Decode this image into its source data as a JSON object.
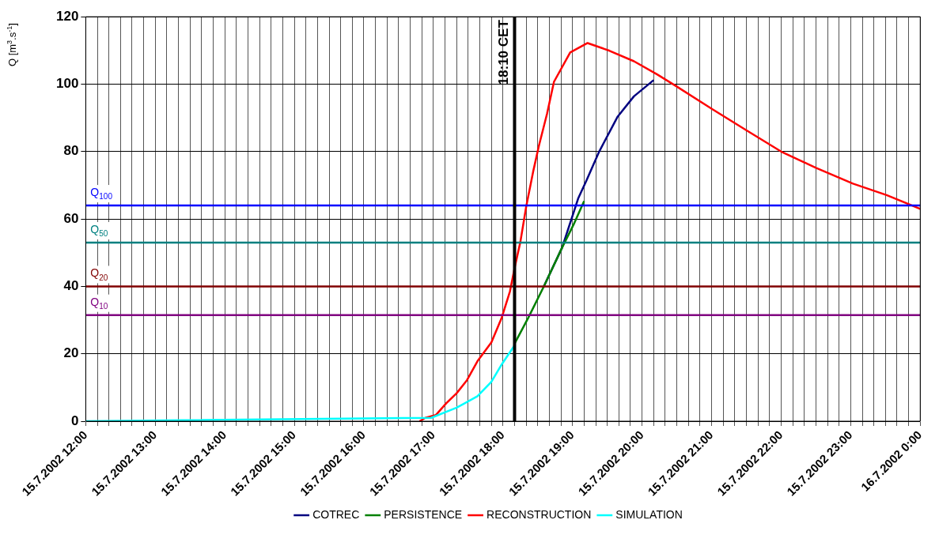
{
  "chart_data": {
    "type": "line",
    "ylabel": "Q [m$^{3}$.s$^{-1}$]",
    "xlim": [
      "2002-07-15T12:00",
      "2002-07-16T00:00"
    ],
    "xticks": [
      {
        "value": "2002-07-15T12:00",
        "label": "15.7.2002 12:00"
      },
      {
        "value": "2002-07-15T12:10",
        "label": null
      },
      {
        "value": "2002-07-15T12:20",
        "label": null
      },
      {
        "value": "2002-07-15T12:30",
        "label": null
      },
      {
        "value": "2002-07-15T12:40",
        "label": null
      },
      {
        "value": "2002-07-15T12:50",
        "label": null
      },
      {
        "value": "2002-07-15T13:00",
        "label": "15.7.2002 13:00"
      },
      {
        "value": "2002-07-15T13:10",
        "label": null
      },
      {
        "value": "2002-07-15T13:20",
        "label": null
      },
      {
        "value": "2002-07-15T13:30",
        "label": null
      },
      {
        "value": "2002-07-15T13:40",
        "label": null
      },
      {
        "value": "2002-07-15T13:50",
        "label": null
      },
      {
        "value": "2002-07-15T14:00",
        "label": "15.7.2002 14:00"
      },
      {
        "value": "2002-07-15T14:10",
        "label": null
      },
      {
        "value": "2002-07-15T14:20",
        "label": null
      },
      {
        "value": "2002-07-15T14:30",
        "label": null
      },
      {
        "value": "2002-07-15T14:40",
        "label": null
      },
      {
        "value": "2002-07-15T14:50",
        "label": null
      },
      {
        "value": "2002-07-15T15:00",
        "label": "15.7.2002 15:00"
      },
      {
        "value": "2002-07-15T15:10",
        "label": null
      },
      {
        "value": "2002-07-15T15:20",
        "label": null
      },
      {
        "value": "2002-07-15T15:30",
        "label": null
      },
      {
        "value": "2002-07-15T15:40",
        "label": null
      },
      {
        "value": "2002-07-15T15:50",
        "label": null
      },
      {
        "value": "2002-07-15T16:00",
        "label": "15.7.2002 16:00"
      },
      {
        "value": "2002-07-15T16:10",
        "label": null
      },
      {
        "value": "2002-07-15T16:20",
        "label": null
      },
      {
        "value": "2002-07-15T16:30",
        "label": null
      },
      {
        "value": "2002-07-15T16:40",
        "label": null
      },
      {
        "value": "2002-07-15T16:50",
        "label": null
      },
      {
        "value": "2002-07-15T17:00",
        "label": "15.7.2002 17:00"
      },
      {
        "value": "2002-07-15T17:10",
        "label": null
      },
      {
        "value": "2002-07-15T17:20",
        "label": null
      },
      {
        "value": "2002-07-15T17:30",
        "label": null
      },
      {
        "value": "2002-07-15T17:40",
        "label": null
      },
      {
        "value": "2002-07-15T17:50",
        "label": null
      },
      {
        "value": "2002-07-15T18:00",
        "label": "15.7.2002 18:00"
      },
      {
        "value": "2002-07-15T18:10",
        "label": null
      },
      {
        "value": "2002-07-15T18:20",
        "label": null
      },
      {
        "value": "2002-07-15T18:30",
        "label": null
      },
      {
        "value": "2002-07-15T18:40",
        "label": null
      },
      {
        "value": "2002-07-15T18:50",
        "label": null
      },
      {
        "value": "2002-07-15T19:00",
        "label": "15.7.2002 19:00"
      },
      {
        "value": "2002-07-15T19:10",
        "label": null
      },
      {
        "value": "2002-07-15T19:20",
        "label": null
      },
      {
        "value": "2002-07-15T19:30",
        "label": null
      },
      {
        "value": "2002-07-15T19:40",
        "label": null
      },
      {
        "value": "2002-07-15T19:50",
        "label": null
      },
      {
        "value": "2002-07-15T20:00",
        "label": "15.7.2002 20:00"
      },
      {
        "value": "2002-07-15T20:10",
        "label": null
      },
      {
        "value": "2002-07-15T20:20",
        "label": null
      },
      {
        "value": "2002-07-15T20:30",
        "label": null
      },
      {
        "value": "2002-07-15T20:40",
        "label": null
      },
      {
        "value": "2002-07-15T20:50",
        "label": null
      },
      {
        "value": "2002-07-15T21:00",
        "label": "15.7.2002 21:00"
      },
      {
        "value": "2002-07-15T21:10",
        "label": null
      },
      {
        "value": "2002-07-15T21:20",
        "label": null
      },
      {
        "value": "2002-07-15T21:30",
        "label": null
      },
      {
        "value": "2002-07-15T21:40",
        "label": null
      },
      {
        "value": "2002-07-15T21:50",
        "label": null
      },
      {
        "value": "2002-07-15T22:00",
        "label": "15.7.2002 22:00"
      },
      {
        "value": "2002-07-15T22:10",
        "label": null
      },
      {
        "value": "2002-07-15T22:20",
        "label": null
      },
      {
        "value": "2002-07-15T22:30",
        "label": null
      },
      {
        "value": "2002-07-15T22:40",
        "label": null
      },
      {
        "value": "2002-07-15T22:50",
        "label": null
      },
      {
        "value": "2002-07-15T23:00",
        "label": "15.7.2002 23:00"
      },
      {
        "value": "2002-07-15T23:10",
        "label": null
      },
      {
        "value": "2002-07-15T23:20",
        "label": null
      },
      {
        "value": "2002-07-15T23:30",
        "label": null
      },
      {
        "value": "2002-07-15T23:40",
        "label": null
      },
      {
        "value": "2002-07-15T23:50",
        "label": null
      },
      {
        "value": "2002-07-16T00:00",
        "label": "16.7.2002 0:00"
      }
    ],
    "ylim": [
      0,
      120
    ],
    "yticks": [
      0,
      20,
      40,
      60,
      80,
      100,
      120
    ],
    "grid": true,
    "legend": "bottom",
    "ref_lines": [
      {
        "axis": "y",
        "value": 64,
        "label": "Q$_{100}$",
        "color": "#0000ff"
      },
      {
        "axis": "y",
        "value": 53,
        "label": "Q$_{50}$",
        "color": "#008080"
      },
      {
        "axis": "y",
        "value": 40,
        "label": "Q$_{20}$",
        "color": "#800000"
      },
      {
        "axis": "y",
        "value": 31.5,
        "label": "Q$_{10}$",
        "color": "#800080"
      },
      {
        "axis": "x",
        "value": "2002-07-15T18:10",
        "label": "18:10 CET",
        "color": "#000000"
      }
    ],
    "series": [
      {
        "name": "COTREC",
        "color": "#000080",
        "x": [
          "2002-07-15T18:35",
          "2002-07-15T18:51",
          "2002-07-15T19:05",
          "2002-07-15T19:12",
          "2002-07-15T19:23",
          "2002-07-15T19:39",
          "2002-07-15T19:53",
          "2002-07-15T20:10"
        ],
        "values": [
          39.8,
          51.5,
          66.2,
          71.4,
          80,
          90.4,
          96.4,
          101.2
        ]
      },
      {
        "name": "PERSISTENCE",
        "color": "#008000",
        "x": [
          "2002-07-15T18:10",
          "2002-07-15T18:22",
          "2002-07-15T18:35",
          "2002-07-15T18:51",
          "2002-07-15T19:01",
          "2002-07-15T19:10"
        ],
        "values": [
          23,
          30.8,
          39.8,
          51.5,
          58.4,
          65.3
        ]
      },
      {
        "name": "RECONSTRUCTION",
        "color": "#ff0000",
        "x": [
          "2002-07-15T16:48",
          "2002-07-15T16:53",
          "2002-07-15T17:02",
          "2002-07-15T17:11",
          "2002-07-15T17:20",
          "2002-07-15T17:29",
          "2002-07-15T17:38",
          "2002-07-15T17:50",
          "2002-07-15T17:59",
          "2002-07-15T18:06",
          "2002-07-15T18:10",
          "2002-07-15T18:15",
          "2002-07-15T18:20",
          "2002-07-15T18:26",
          "2002-07-15T18:31",
          "2002-07-15T18:38",
          "2002-07-15T18:44",
          "2002-07-15T18:58",
          "2002-07-15T19:13",
          "2002-07-15T19:32",
          "2002-07-15T19:53",
          "2002-07-15T20:13",
          "2002-07-15T20:29",
          "2002-07-15T21:01",
          "2002-07-15T21:31",
          "2002-07-15T22:00",
          "2002-07-15T22:30",
          "2002-07-15T23:02",
          "2002-07-15T23:31",
          "2002-07-16T00:00"
        ],
        "values": [
          0,
          1,
          1.8,
          5.3,
          8.3,
          12.2,
          17.8,
          23.4,
          30.8,
          38.5,
          45.4,
          53.2,
          63.6,
          74,
          81.7,
          91.2,
          100.7,
          109.4,
          112.2,
          109.9,
          106.8,
          102.9,
          99.5,
          92.5,
          86.1,
          80,
          75.2,
          70.5,
          67.1,
          63
        ]
      },
      {
        "name": "SIMULATION",
        "color": "#00ffff",
        "x": [
          "2002-07-15T12:00",
          "2002-07-15T16:58",
          "2002-07-15T17:20",
          "2002-07-15T17:38",
          "2002-07-15T17:50",
          "2002-07-15T17:59",
          "2002-07-15T18:10"
        ],
        "values": [
          0,
          1,
          4,
          7.4,
          11.7,
          16.9,
          22.5
        ]
      }
    ]
  }
}
